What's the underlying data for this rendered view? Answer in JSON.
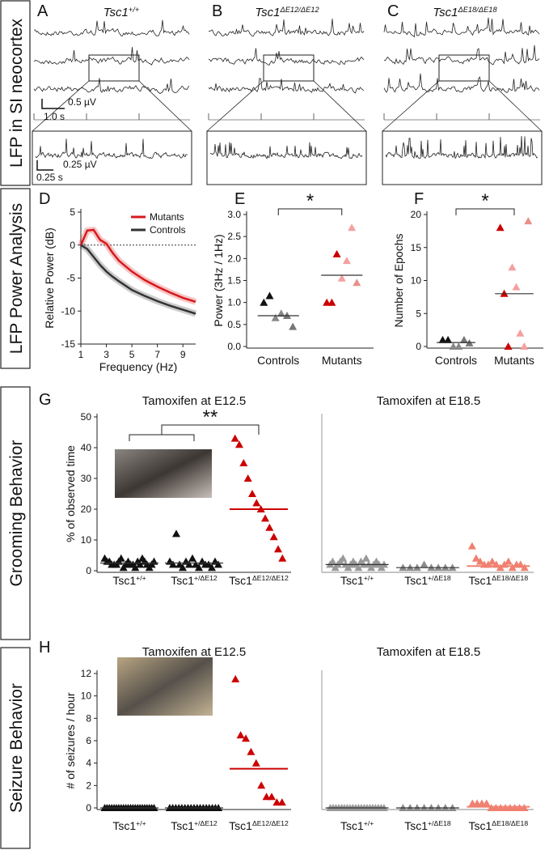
{
  "side_labels": [
    "LFP in SI neocortex",
    "LFP Power Analysis",
    "Grooming Behavior",
    "Seizure Behavior"
  ],
  "lfp_panels": [
    {
      "panel": "A",
      "genotype": "Tsc1",
      "superscript": "+/+"
    },
    {
      "panel": "B",
      "genotype": "Tsc1",
      "superscript": "ΔE12/ΔE12"
    },
    {
      "panel": "C",
      "genotype": "Tsc1",
      "superscript": "ΔE18/ΔE18"
    }
  ],
  "scale_bars": {
    "top_amplitude": "0.5 µV",
    "top_time": "1.0 s",
    "zoom_amplitude": "0.25 µV",
    "zoom_time": "0.25 s"
  },
  "chart_data": [
    {
      "type": "line",
      "panel": "D",
      "ylabel": "Relative Power (dB)",
      "xlabel": "Frequency (Hz)",
      "x": [
        1,
        1.5,
        2,
        2.5,
        3,
        3.5,
        4,
        5,
        6,
        7,
        8,
        9,
        10
      ],
      "series": [
        {
          "name": "Mutants",
          "color": "#d7191c",
          "values": [
            0,
            2.2,
            2.3,
            0.8,
            0.2,
            -1.2,
            -2.4,
            -4,
            -5.3,
            -6.3,
            -7.2,
            -8,
            -8.6
          ]
        },
        {
          "name": "Controls",
          "color": "#333333",
          "values": [
            0,
            -0.6,
            -1.8,
            -3,
            -4,
            -4.8,
            -5.5,
            -6.8,
            -7.7,
            -8.5,
            -9.2,
            -9.8,
            -10.4
          ]
        }
      ],
      "xlim": [
        1,
        10
      ],
      "xticks": [
        1,
        3,
        5,
        7,
        9
      ],
      "ylim": [
        -15,
        5
      ],
      "yticks": [
        5,
        0,
        -5,
        -10,
        -15
      ],
      "reference_line": 0
    },
    {
      "type": "strip",
      "panel": "E",
      "ylabel": "Power (3Hz / 1Hz)",
      "significance": "*",
      "categories": [
        "Controls",
        "Mutants"
      ],
      "groups": [
        {
          "values": [
            1.0,
            1.15,
            0.65,
            0.75,
            0.7,
            0.45
          ],
          "colors": [
            "#111111",
            "#111111",
            "#888888",
            "#888888",
            "#777777",
            "#777777"
          ],
          "mean": 0.7
        },
        {
          "values": [
            1.0,
            1.0,
            2.1,
            1.55,
            1.95,
            2.7,
            1.45
          ],
          "colors": [
            "#cc0000",
            "#cc0000",
            "#cc0000",
            "#f4a0a0",
            "#f4a0a0",
            "#f4a0a0",
            "#e8908a"
          ],
          "mean": 1.62
        }
      ],
      "ylim": [
        0,
        3
      ],
      "yticks": [
        {
          "value": 0,
          "label": "0.0"
        },
        {
          "value": 0.5,
          "label": "0.5"
        },
        {
          "value": 1,
          "label": "1.0"
        },
        {
          "value": 1.5,
          "label": "1.5"
        },
        {
          "value": 2,
          "label": "2.0"
        },
        {
          "value": 2.5,
          "label": "2.5"
        },
        {
          "value": 3,
          "label": "3.0"
        }
      ]
    },
    {
      "type": "strip",
      "panel": "F",
      "ylabel": "Number of Epochs",
      "significance": "*",
      "categories": [
        "Controls",
        "Mutants"
      ],
      "groups": [
        {
          "values": [
            1,
            1,
            0,
            0,
            1,
            0.5
          ],
          "colors": [
            "#111111",
            "#111111",
            "#888888",
            "#888888",
            "#777777",
            "#777777"
          ],
          "mean": 0.6
        },
        {
          "values": [
            18,
            8,
            0,
            12,
            9,
            2,
            0,
            19
          ],
          "colors": [
            "#cc0000",
            "#cc0000",
            "#cc0000",
            "#f4a0a0",
            "#f4a0a0",
            "#f4a0a0",
            "#f4a0a0",
            "#e8908a"
          ],
          "mean": 8
        }
      ],
      "ylim": [
        0,
        20
      ],
      "yticks": [
        0,
        5,
        10,
        15,
        20
      ]
    },
    {
      "type": "strip",
      "panel": "G",
      "title": "Tamoxifen at E12.5",
      "ylabel": "% of observed time",
      "significance": "**",
      "categories": [
        {
          "text": "Tsc1",
          "sup": "+/+"
        },
        {
          "text": "Tsc1",
          "sup": "+/ΔE12"
        },
        {
          "text": "Tsc1",
          "sup": "ΔE12/ΔE12"
        }
      ],
      "groups": [
        {
          "color": "#111111",
          "values": [
            4,
            3,
            3,
            2,
            2,
            2,
            3,
            4,
            1,
            2,
            3,
            2,
            2,
            1,
            3,
            2,
            4,
            3,
            2,
            1,
            2,
            3
          ],
          "mean": 2.5
        },
        {
          "color": "#111111",
          "values": [
            3,
            2,
            12,
            2,
            1,
            3,
            2,
            4,
            2,
            1,
            3,
            2,
            2,
            1,
            3,
            2
          ],
          "mean": 2.5
        },
        {
          "color": "#cc0000",
          "values": [
            43,
            41,
            35,
            30,
            25,
            22,
            20,
            17,
            14,
            11,
            7,
            4
          ],
          "mean": 20
        }
      ],
      "ylim": [
        0,
        50
      ],
      "yticks": [
        0,
        10,
        20,
        30,
        40,
        50
      ]
    },
    {
      "type": "strip",
      "title": "Tamoxifen at E18.5",
      "categories": [
        {
          "text": "Tsc1",
          "sup": "+/+"
        },
        {
          "text": "Tsc1",
          "sup": "+/ΔE18"
        },
        {
          "text": "Tsc1",
          "sup": "ΔE18/ΔE18"
        }
      ],
      "groups": [
        {
          "color": "#999999",
          "values": [
            2,
            3,
            1,
            2,
            3,
            4,
            2,
            1,
            2,
            3,
            2,
            1,
            3,
            2,
            4,
            2,
            1,
            2,
            3,
            2,
            1,
            2
          ],
          "mean": 2
        },
        {
          "color": "#8c8c8c",
          "values": [
            1,
            1,
            1,
            2,
            1,
            1,
            1,
            1
          ],
          "mean": 1
        },
        {
          "color": "#f08070",
          "values": [
            8,
            4,
            3,
            2,
            2,
            3,
            2,
            1,
            2,
            3,
            1,
            2,
            2,
            1
          ],
          "mean": 1.5
        }
      ],
      "ylim": [
        0,
        50
      ]
    },
    {
      "type": "strip",
      "panel": "H",
      "title": "Tamoxifen at E12.5",
      "ylabel": "# of seizures / hour",
      "categories": [
        {
          "text": "Tsc1",
          "sup": "+/+"
        },
        {
          "text": "Tsc1",
          "sup": "+/ΔE12"
        },
        {
          "text": "Tsc1",
          "sup": "ΔE12/ΔE12"
        }
      ],
      "groups": [
        {
          "color": "#111111",
          "values": [
            0,
            0,
            0,
            0,
            0,
            0,
            0,
            0,
            0,
            0,
            0,
            0,
            0,
            0,
            0,
            0,
            0,
            0,
            0,
            0,
            0,
            0
          ],
          "mean": 0
        },
        {
          "color": "#111111",
          "values": [
            0,
            0,
            0,
            0,
            0,
            0,
            0,
            0,
            0,
            0,
            0,
            0,
            0,
            0,
            0,
            0,
            0
          ],
          "mean": 0
        },
        {
          "color": "#cc0000",
          "values": [
            11.5,
            6.5,
            6.2,
            5,
            4,
            2,
            1,
            1,
            0.5,
            0.5
          ],
          "mean": 3.5
        }
      ],
      "ylim": [
        0,
        12
      ],
      "yticks": [
        0,
        2,
        4,
        6,
        8,
        10,
        12
      ]
    },
    {
      "type": "strip",
      "title": "Tamoxifen at E18.5",
      "categories": [
        {
          "text": "Tsc1",
          "sup": "+/+"
        },
        {
          "text": "Tsc1",
          "sup": "+/ΔE18"
        },
        {
          "text": "Tsc1",
          "sup": "ΔE18/ΔE18"
        }
      ],
      "groups": [
        {
          "color": "#999999",
          "values": [
            0,
            0,
            0,
            0,
            0,
            0,
            0,
            0,
            0,
            0,
            0,
            0,
            0,
            0,
            0,
            0,
            0,
            0,
            0,
            0
          ],
          "mean": 0
        },
        {
          "color": "#8c8c8c",
          "values": [
            0,
            0,
            0,
            0,
            0,
            0,
            0,
            0
          ],
          "mean": 0
        },
        {
          "color": "#f08070",
          "values": [
            0.4,
            0.4,
            0.4,
            0.4,
            0,
            0,
            0,
            0,
            0,
            0,
            0,
            0
          ],
          "mean": 0.1
        }
      ],
      "ylim": [
        0,
        12
      ]
    }
  ]
}
